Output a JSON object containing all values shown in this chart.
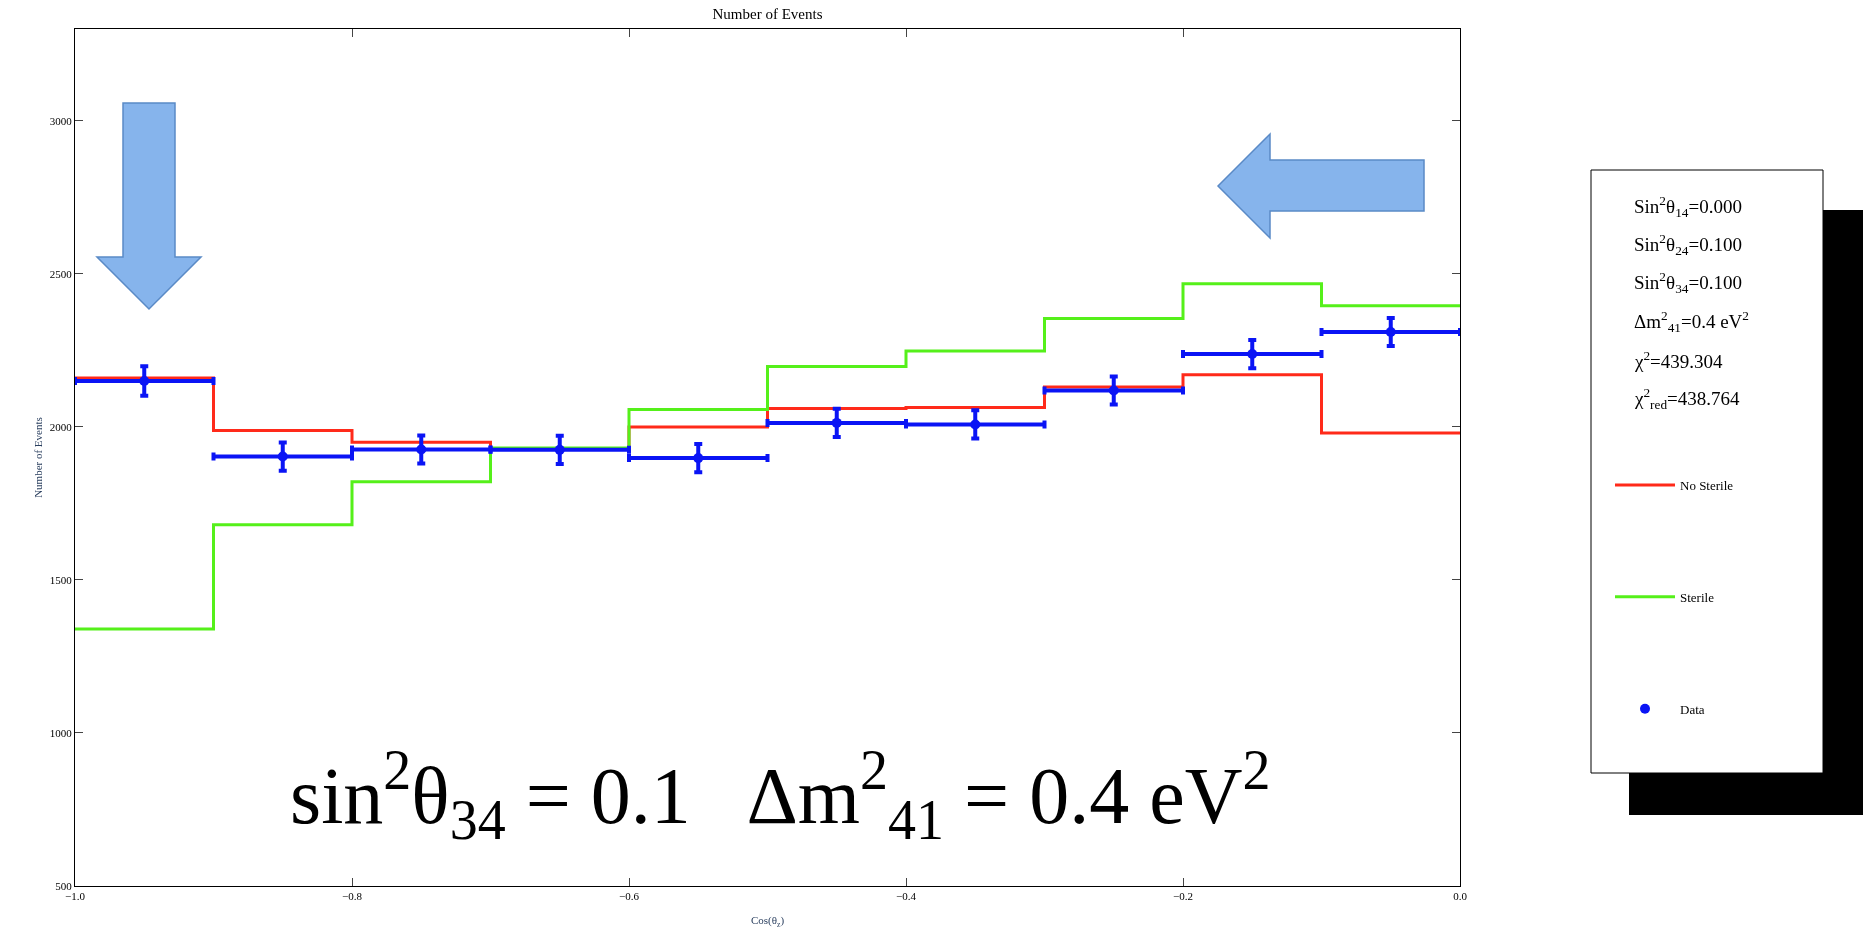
{
  "chart_data": {
    "type": "step",
    "title": "Number of Events",
    "xlabel": "Cos(θ$_{z}$)",
    "ylabel": "Number of Events",
    "x": [
      -0.95,
      -0.85,
      -0.75,
      -0.65,
      -0.55,
      -0.45,
      -0.35,
      -0.25,
      -0.15,
      -0.05
    ],
    "series": [
      {
        "name": "No Sterile",
        "color": "#ff2a1a",
        "marker": "none",
        "x": [
          -1.0,
          -0.9,
          -0.8,
          -0.7,
          -0.6,
          -0.5,
          -0.4,
          -0.3,
          -0.2,
          -0.1
        ],
        "values": [
          2160,
          1988,
          1950,
          1928,
          2000,
          2060,
          2063,
          2130,
          2170,
          1980
        ]
      },
      {
        "name": "Sterile",
        "color": "#55f01a",
        "marker": "none",
        "x": [
          -1.0,
          -0.9,
          -0.8,
          -0.7,
          -0.6,
          -0.5,
          -0.4,
          -0.3,
          -0.2,
          -0.1
        ],
        "values": [
          1340,
          1680,
          1821,
          1931,
          2057,
          2197,
          2248,
          2354,
          2468,
          2396
        ]
      },
      {
        "name": "Data",
        "type": "scatter",
        "color": "#0a14f5",
        "marker": "circle",
        "values": [
          2150,
          1903,
          1926,
          1925,
          1898,
          2013,
          2008,
          2119,
          2238,
          2310
        ],
        "errors": [
          48,
          46,
          46,
          46,
          46,
          46,
          46,
          46,
          46,
          46
        ],
        "xerrors": [
          0.05,
          0.05,
          0.05,
          0.05,
          0.05,
          0.05,
          0.05,
          0.05,
          0.05,
          0.05
        ]
      }
    ],
    "xlim": [
      -1.0,
      0.0
    ],
    "ylim": [
      500,
      3300
    ],
    "xticks": [
      {
        "value": -1.0,
        "label": "−1.0"
      },
      {
        "value": -0.8,
        "label": "−0.8"
      },
      {
        "value": -0.6,
        "label": "−0.6"
      },
      {
        "value": -0.4,
        "label": "−0.4"
      },
      {
        "value": -0.2,
        "label": "−0.2"
      },
      {
        "value": 0.0,
        "label": "0.0"
      }
    ],
    "yticks": [
      500,
      1000,
      1500,
      2000,
      2500,
      3000
    ],
    "legend": "right",
    "annotations": [
      "sin$^{2}$θ$_{34}$ = 0.1   Δm$^{2}$$_{41}$ = 0.4 eV$^{2}$",
      "Sin$^{2}$θ$_{14}$=0.000",
      "Sin$^{2}$θ$_{24}$=0.100",
      "Sin$^{2}$θ$_{34}$=0.100",
      "Δm$^{2}$$_{41}$=0.4 eV$^{2}$",
      "χ$^{2}$=439.304",
      "χ$^{2}$$_{red}$=438.764"
    ]
  }
}
